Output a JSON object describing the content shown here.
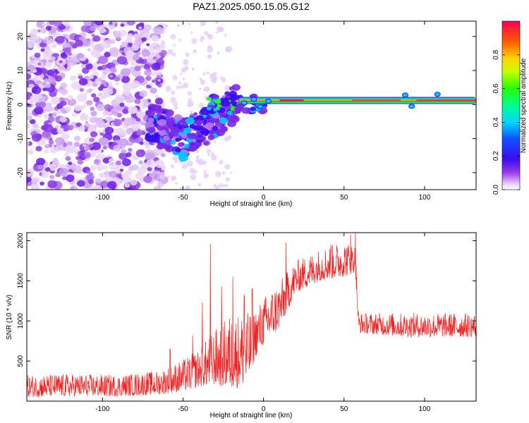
{
  "chart_data": [
    {
      "type": "heatmap",
      "title": "PAZ1.2025.050.15.05.G12",
      "xlabel": "Height of straight line (km)",
      "ylabel": "Frequency (Hz)",
      "xlim": [
        -147,
        132
      ],
      "ylim": [
        -25,
        24.5
      ],
      "xticks": [
        -100,
        -50,
        0,
        50,
        100
      ],
      "yticks": [
        -20,
        -10,
        0,
        10,
        20
      ],
      "description_regions": [
        {
          "x_range": [
            -147,
            -60
          ],
          "note": "scattered low-amplitude noise"
        },
        {
          "x_range": [
            -70,
            -20
          ],
          "note": "descending noisy tone (~0 to -12 Hz)"
        },
        {
          "x_range": [
            -20,
            132
          ],
          "note": "strong narrow tone near +1 Hz"
        }
      ],
      "colorbar": {
        "label": "Normalized spectral amplitude",
        "range": [
          0,
          1
        ],
        "ticks": [
          0.0,
          0.2,
          0.4,
          0.6,
          0.8
        ],
        "tick_labels": [
          "0.0",
          "0.2",
          "0.4",
          "0.6",
          "0.8"
        ]
      }
    },
    {
      "type": "line",
      "xlabel": "Height of straight line (km)",
      "ylabel": "SNR (10 * v/v)",
      "xlim": [
        -147,
        132
      ],
      "ylim": [
        0,
        2100
      ],
      "xticks": [
        -100,
        -50,
        0,
        50,
        100
      ],
      "yticks": [
        500,
        1000,
        1500,
        2000
      ],
      "series": [
        {
          "name": "SNR",
          "color": "#ee2222",
          "envelope": [
            {
              "x": -147,
              "low": 50,
              "high": 330
            },
            {
              "x": -120,
              "low": 60,
              "high": 340
            },
            {
              "x": -90,
              "low": 60,
              "high": 330
            },
            {
              "x": -65,
              "low": 80,
              "high": 380
            },
            {
              "x": -50,
              "low": 120,
              "high": 520
            },
            {
              "x": -40,
              "low": 180,
              "high": 650
            },
            {
              "x": -30,
              "low": 200,
              "high": 900
            },
            {
              "x": -20,
              "low": 150,
              "high": 1100
            },
            {
              "x": -10,
              "low": 200,
              "high": 1100
            },
            {
              "x": -5,
              "low": 550,
              "high": 1150
            },
            {
              "x": 0,
              "low": 700,
              "high": 1300
            },
            {
              "x": 10,
              "low": 900,
              "high": 1500
            },
            {
              "x": 20,
              "low": 1350,
              "high": 1750
            },
            {
              "x": 35,
              "low": 1500,
              "high": 1900
            },
            {
              "x": 50,
              "low": 1550,
              "high": 2000
            },
            {
              "x": 57,
              "low": 1600,
              "high": 1950
            },
            {
              "x": 59,
              "low": 850,
              "high": 1100
            },
            {
              "x": 90,
              "low": 800,
              "high": 1100
            },
            {
              "x": 132,
              "low": 800,
              "high": 1100
            }
          ],
          "spikes": [
            {
              "x": -58,
              "value": 650
            },
            {
              "x": -44,
              "value": 820
            },
            {
              "x": -38,
              "value": 1230
            },
            {
              "x": -33,
              "value": 1960
            },
            {
              "x": -26,
              "value": 1430
            },
            {
              "x": -19,
              "value": 1550
            },
            {
              "x": -12,
              "value": 1320
            },
            {
              "x": -7,
              "value": 1400
            },
            {
              "x": 14,
              "value": 1980
            },
            {
              "x": 42,
              "value": 1950
            },
            {
              "x": 54,
              "value": 2080
            },
            {
              "x": 57,
              "value": 2100
            }
          ]
        }
      ]
    }
  ]
}
